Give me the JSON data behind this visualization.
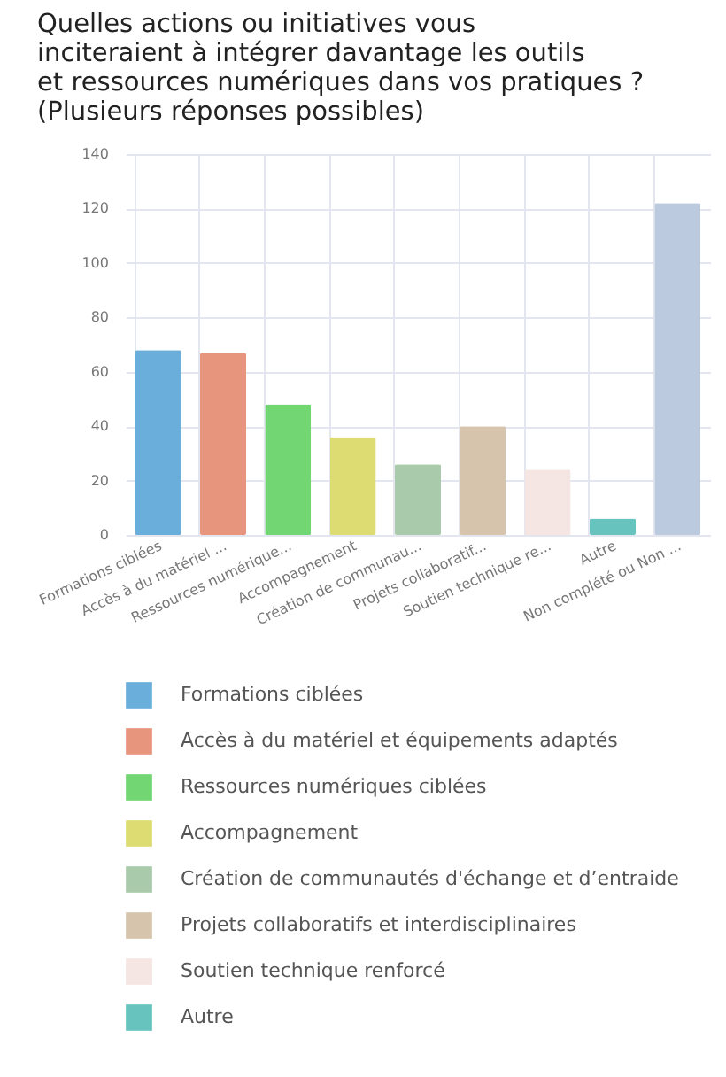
{
  "chart_data": {
    "type": "bar",
    "title": "Quelles actions ou initiatives vous inciteraient à intégrer davantage les outils et ressources numériques dans vos pratiques ? (Plusieurs réponses possibles)",
    "categories": [
      "Formations ciblées",
      "Accès à du matériel ...",
      "Ressources numérique...",
      "Accompagnement",
      "Création de communau...",
      "Projets collaboratif...",
      "Soutien technique re...",
      "Autre",
      "Non complété ou Non ..."
    ],
    "series": [
      {
        "name": "Formations ciblées",
        "color": "#6aaedb",
        "values": [
          68,
          null,
          null,
          null,
          null,
          null,
          null,
          null,
          null
        ]
      },
      {
        "name": "Accès à du matériel et équipements adaptés",
        "color": "#e8957e",
        "values": [
          null,
          67,
          null,
          null,
          null,
          null,
          null,
          null,
          null
        ]
      },
      {
        "name": "Ressources numériques ciblées",
        "color": "#72d672",
        "values": [
          null,
          null,
          48,
          null,
          null,
          null,
          null,
          null,
          null
        ]
      },
      {
        "name": "Accompagnement",
        "color": "#dcdc72",
        "values": [
          null,
          null,
          null,
          36,
          null,
          null,
          null,
          null,
          null
        ]
      },
      {
        "name": "Création de communautés d'échange et d’entraide",
        "color": "#a9cbab",
        "values": [
          null,
          null,
          null,
          null,
          26,
          null,
          null,
          null,
          null
        ]
      },
      {
        "name": "Projets collaboratifs et interdisciplinaires",
        "color": "#d6c4ac",
        "values": [
          null,
          null,
          null,
          null,
          null,
          40,
          null,
          null,
          null
        ]
      },
      {
        "name": "Soutien technique renforcé",
        "color": "#f5e6e4",
        "values": [
          null,
          null,
          null,
          null,
          null,
          null,
          24,
          null,
          null
        ]
      },
      {
        "name": "Autre",
        "color": "#66c3bd",
        "values": [
          null,
          null,
          null,
          null,
          null,
          null,
          null,
          6,
          null
        ]
      },
      {
        "color": "#bccadf",
        "values": [
          null,
          null,
          null,
          null,
          null,
          null,
          null,
          null,
          122
        ]
      }
    ],
    "ylim": [
      0,
      140
    ],
    "yticks": [
      0,
      20,
      40,
      60,
      80,
      100,
      120,
      140
    ],
    "grid": true,
    "legend": "bottom"
  }
}
